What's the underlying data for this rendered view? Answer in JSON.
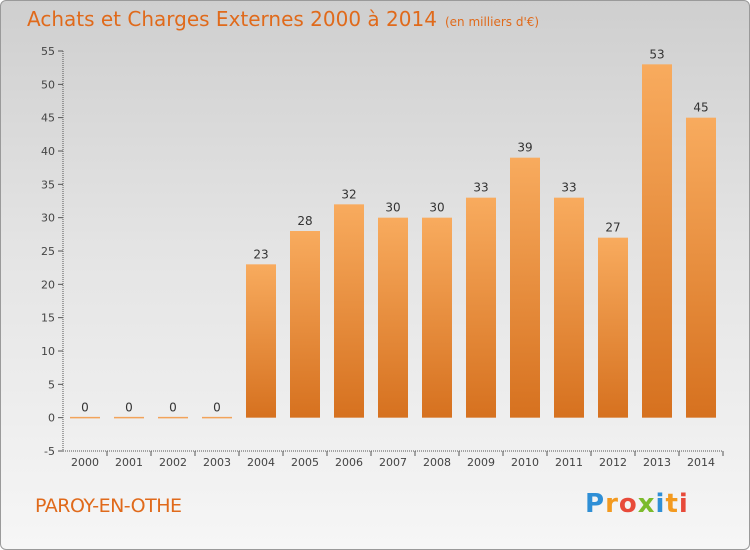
{
  "title": "Achats et Charges Externes 2000 à 2014",
  "unit": "(en milliers d'€)",
  "commune": "PAROY-EN-OTHE",
  "logo": {
    "letters": [
      "P",
      "r",
      "o",
      "x",
      "i",
      "t",
      "i"
    ],
    "colors": [
      "#2f8fd6",
      "#f39a1f",
      "#e84a3a",
      "#7cbb2c",
      "#2f8fd6",
      "#f39a1f",
      "#e84a3a"
    ]
  },
  "colors": {
    "bar_light": "#f7a85a",
    "bar_dark": "#d97421",
    "text": "#e06a1b"
  },
  "chart_data": {
    "type": "bar",
    "title": "Achats et Charges Externes 2000 à 2014",
    "subtitle": "(en milliers d'€)",
    "categories": [
      "2000",
      "2001",
      "2002",
      "2003",
      "2004",
      "2005",
      "2006",
      "2007",
      "2008",
      "2009",
      "2010",
      "2011",
      "2012",
      "2013",
      "2014"
    ],
    "values": [
      0,
      0,
      0,
      0,
      23,
      28,
      32,
      30,
      30,
      33,
      39,
      33,
      27,
      53,
      45
    ],
    "ylim": [
      -5,
      55
    ],
    "yticks": [
      -5,
      0,
      5,
      10,
      15,
      20,
      25,
      30,
      35,
      40,
      45,
      50,
      55
    ],
    "grid": false,
    "xlabel": "",
    "ylabel": ""
  }
}
